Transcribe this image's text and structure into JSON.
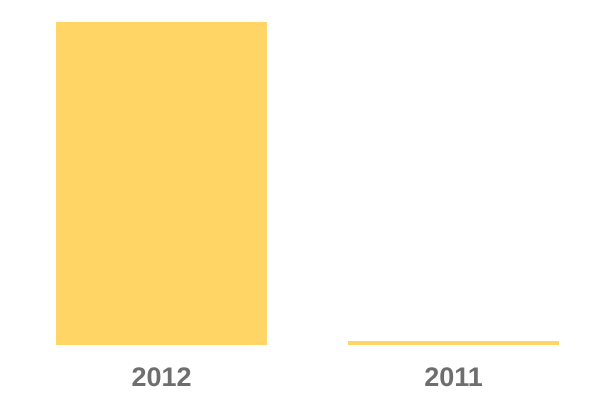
{
  "chart_data": {
    "type": "bar",
    "title": "",
    "categories": [
      "2012",
      "2011"
    ],
    "values": [
      100,
      1.2
    ],
    "xlabel": "",
    "ylabel": "",
    "ylim": [
      0,
      100
    ],
    "grid": false,
    "axes_visible": false,
    "legend_position": "none",
    "bar_color": "#FFD666",
    "label_color": "#6E6E6E",
    "background_color": "#FFFFFF",
    "value_note": "no axis or value labels shown; values estimated from relative bar heights (~323px vs ~4px)"
  }
}
